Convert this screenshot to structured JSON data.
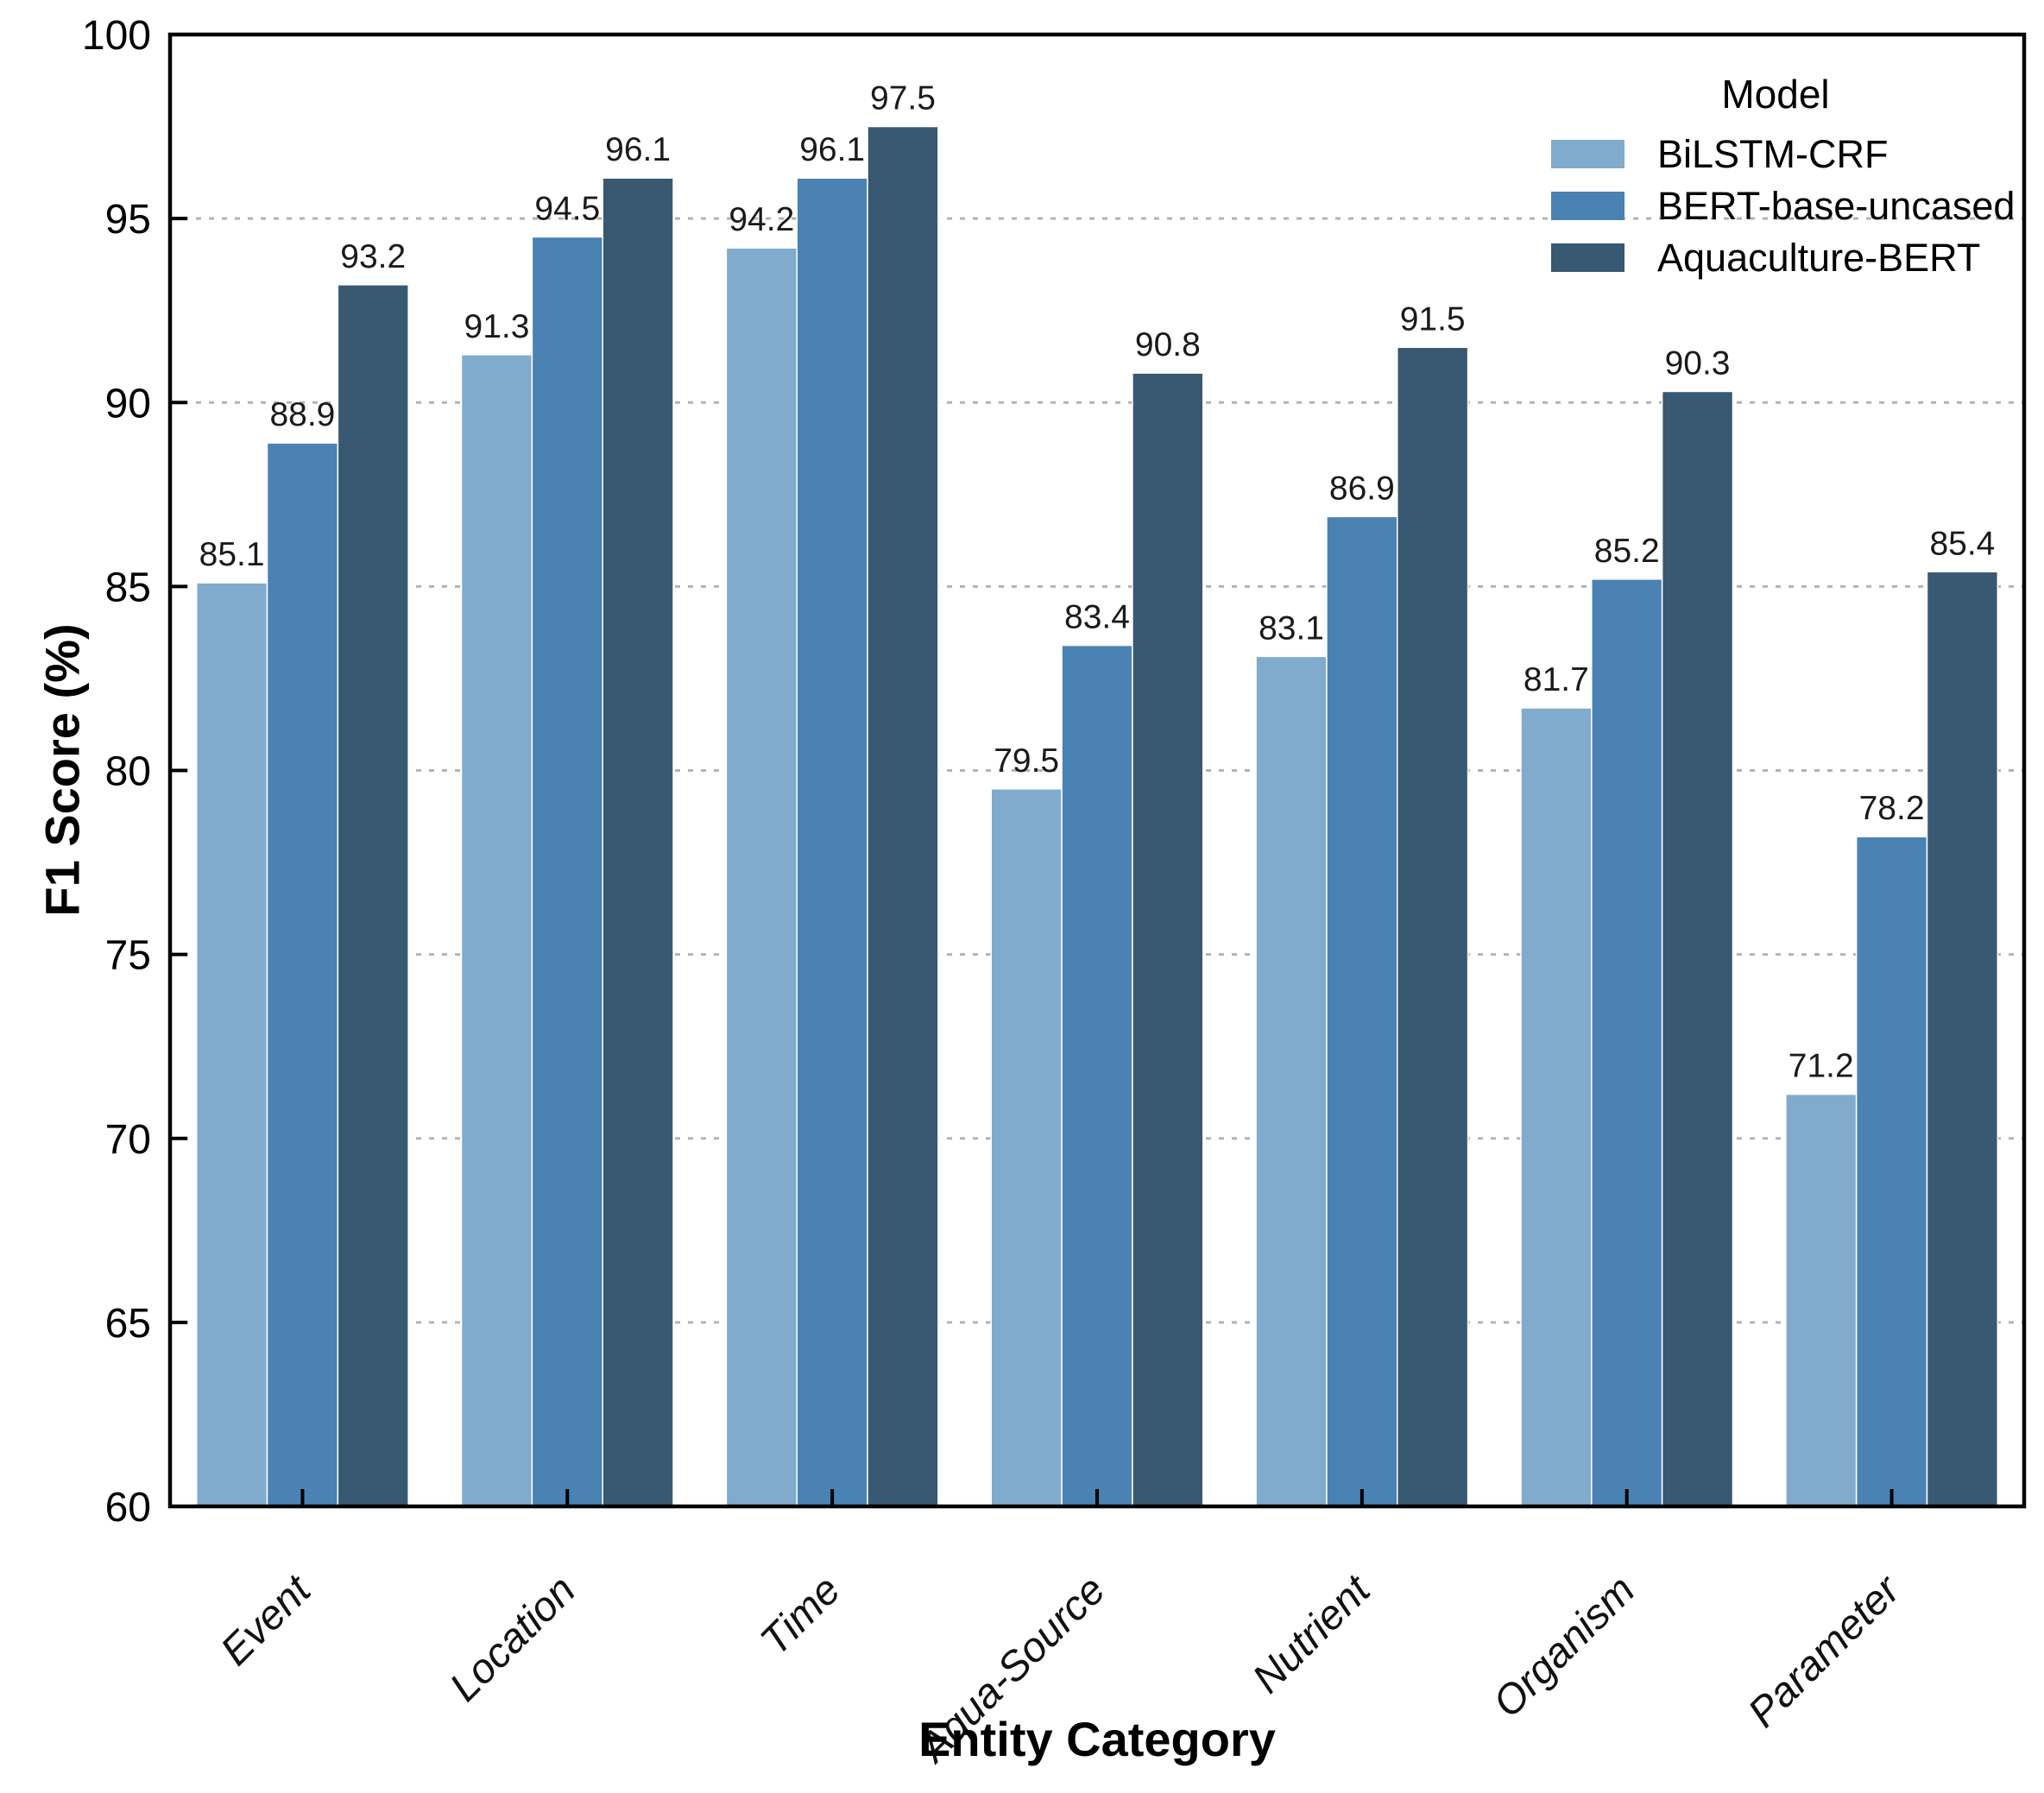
{
  "chart_data": {
    "type": "bar",
    "title": "",
    "xlabel": "Entity Category",
    "ylabel": "F1 Score (%)",
    "categories": [
      "Event",
      "Location",
      "Time",
      "Aqua-Source",
      "Nutrient",
      "Organism",
      "Parameter"
    ],
    "series": [
      {
        "name": "BiLSTM-CRF",
        "color": "#80ABCC",
        "values": [
          85.1,
          91.3,
          94.2,
          79.5,
          83.1,
          81.7,
          71.2
        ]
      },
      {
        "name": "BERT-base-uncased",
        "color": "#4A82B4",
        "values": [
          88.9,
          94.5,
          96.1,
          83.4,
          86.9,
          85.2,
          78.2
        ]
      },
      {
        "name": "Aquaculture-BERT",
        "color": "#395872",
        "values": [
          93.2,
          96.1,
          97.5,
          90.8,
          91.5,
          90.3,
          85.4
        ]
      }
    ],
    "ylim": [
      60,
      100
    ],
    "yticks": [
      60,
      65,
      70,
      75,
      80,
      85,
      90,
      95,
      100
    ],
    "grid": {
      "axis": "y",
      "style": "dashed",
      "color": "#b3b3b3",
      "on": true
    },
    "legend": {
      "title": "Model",
      "position": "upper right",
      "frame": false
    },
    "value_labels": true,
    "value_label_color": "#1a1a1a",
    "tick_label_color": "#000000",
    "spine_color": "#000000",
    "background": "#ffffff"
  }
}
